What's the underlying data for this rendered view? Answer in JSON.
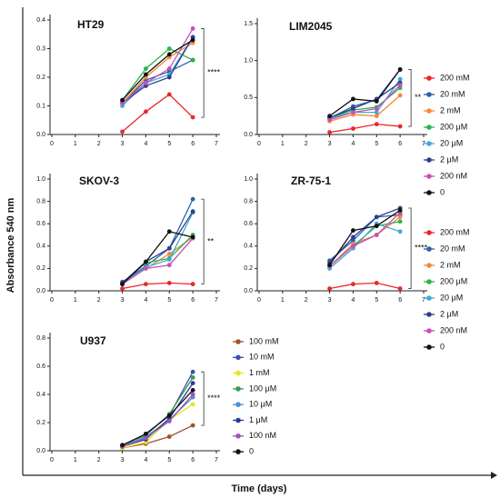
{
  "ylabel": "Absorbance 540 nm",
  "xlabel": "Time (days)",
  "chart_data": [
    {
      "type": "line",
      "title": "HT29",
      "x": [
        3,
        4,
        5,
        6
      ],
      "xlim": [
        0,
        7
      ],
      "xticks": [
        0,
        1,
        2,
        3,
        4,
        5,
        6,
        7
      ],
      "ylim": [
        0,
        0.4
      ],
      "yticks": [
        {
          "value": 0,
          "label": "0.0"
        },
        0.1,
        0.2,
        0.3,
        0.4
      ],
      "annotation": "****",
      "series": [
        {
          "color": "#e8282b",
          "values": [
            0.01,
            0.08,
            0.14,
            0.06
          ]
        },
        {
          "color": "#2e5fa8",
          "values": [
            0.11,
            0.19,
            0.22,
            0.26
          ]
        },
        {
          "color": "#f5883a",
          "values": [
            0.11,
            0.2,
            0.27,
            0.32
          ]
        },
        {
          "color": "#2bb34a",
          "values": [
            0.12,
            0.23,
            0.3,
            0.26
          ]
        },
        {
          "color": "#3fa9d9",
          "values": [
            0.1,
            0.18,
            0.21,
            0.34
          ]
        },
        {
          "color": "#2a3f8f",
          "values": [
            0.11,
            0.17,
            0.2,
            0.34
          ]
        },
        {
          "color": "#c94fb5",
          "values": [
            0.11,
            0.18,
            0.23,
            0.37
          ]
        },
        {
          "color": "#111111",
          "values": [
            0.12,
            0.21,
            0.28,
            0.33
          ]
        }
      ]
    },
    {
      "type": "line",
      "title": "LIM2045",
      "x": [
        3,
        4,
        5,
        6
      ],
      "xlim": [
        0,
        7
      ],
      "xticks": [
        0,
        1,
        2,
        3,
        4,
        5,
        6,
        7
      ],
      "ylim": [
        0,
        1.5
      ],
      "yticks": [
        {
          "value": 0,
          "label": "0.0"
        },
        0.5,
        {
          "value": 1,
          "label": "1.0"
        },
        1.5
      ],
      "annotation": "**",
      "legend": "right",
      "series": [
        {
          "name": "200 mM",
          "color": "#e8282b",
          "values": [
            0.03,
            0.08,
            0.14,
            0.11
          ]
        },
        {
          "name": "20 mM",
          "color": "#2e5fa8",
          "values": [
            0.22,
            0.38,
            0.47,
            0.88
          ]
        },
        {
          "name": "2 mM",
          "color": "#f5883a",
          "values": [
            0.18,
            0.27,
            0.25,
            0.53
          ]
        },
        {
          "name": "200 μM",
          "color": "#2bb34a",
          "values": [
            0.22,
            0.33,
            0.37,
            0.63
          ]
        },
        {
          "name": "20 μM",
          "color": "#3fa9d9",
          "values": [
            0.22,
            0.3,
            0.3,
            0.75
          ]
        },
        {
          "name": "2 μM",
          "color": "#2a3f8f",
          "values": [
            0.23,
            0.35,
            0.48,
            0.7
          ]
        },
        {
          "name": "200 nM",
          "color": "#c94fb5",
          "values": [
            0.2,
            0.3,
            0.35,
            0.67
          ]
        },
        {
          "name": "0",
          "color": "#111111",
          "values": [
            0.25,
            0.48,
            0.45,
            0.88
          ]
        }
      ]
    },
    {
      "type": "line",
      "title": "SKOV-3",
      "x": [
        3,
        4,
        5,
        6
      ],
      "xlim": [
        0,
        7
      ],
      "xticks": [
        0,
        1,
        2,
        3,
        4,
        5,
        6,
        7
      ],
      "ylim": [
        0,
        1
      ],
      "yticks": [
        {
          "value": 0,
          "label": "0.0"
        },
        0.2,
        0.4,
        0.6,
        0.8,
        {
          "value": 1,
          "label": "1.0"
        }
      ],
      "annotation": "**",
      "series": [
        {
          "color": "#e8282b",
          "values": [
            0.02,
            0.06,
            0.07,
            0.06
          ]
        },
        {
          "color": "#2e5fa8",
          "values": [
            0.08,
            0.22,
            0.38,
            0.82
          ]
        },
        {
          "color": "#f5883a",
          "values": [
            0.06,
            0.2,
            0.33,
            0.48
          ]
        },
        {
          "color": "#2bb34a",
          "values": [
            0.07,
            0.25,
            0.29,
            0.5
          ]
        },
        {
          "color": "#3fa9d9",
          "values": [
            0.07,
            0.21,
            0.28,
            0.7
          ]
        },
        {
          "color": "#2a3f8f",
          "values": [
            0.07,
            0.26,
            0.38,
            0.71
          ]
        },
        {
          "color": "#c94fb5",
          "values": [
            0.06,
            0.2,
            0.23,
            0.47
          ]
        },
        {
          "color": "#111111",
          "values": [
            0.06,
            0.26,
            0.53,
            0.48
          ]
        }
      ]
    },
    {
      "type": "line",
      "title": "ZR-75-1",
      "x": [
        3,
        4,
        5,
        6
      ],
      "xlim": [
        0,
        7
      ],
      "xticks": [
        0,
        1,
        2,
        3,
        4,
        5,
        6,
        7
      ],
      "ylim": [
        0,
        1
      ],
      "yticks": [
        {
          "value": 0,
          "label": "0.0"
        },
        0.2,
        0.4,
        0.6,
        0.8,
        {
          "value": 1,
          "label": "1.0"
        }
      ],
      "annotation": "****",
      "legend": "right",
      "series": [
        {
          "name": "200 mM",
          "color": "#e8282b",
          "values": [
            0.02,
            0.06,
            0.07,
            0.02
          ]
        },
        {
          "name": "20 mM",
          "color": "#2e5fa8",
          "values": [
            0.27,
            0.45,
            0.66,
            0.68
          ]
        },
        {
          "name": "2 mM",
          "color": "#f5883a",
          "values": [
            0.22,
            0.42,
            0.5,
            0.66
          ]
        },
        {
          "name": "200 μM",
          "color": "#2bb34a",
          "values": [
            0.22,
            0.4,
            0.58,
            0.62
          ]
        },
        {
          "name": "20 μM",
          "color": "#3fa9d9",
          "values": [
            0.2,
            0.38,
            0.6,
            0.53
          ]
        },
        {
          "name": "2 μM",
          "color": "#2a3f8f",
          "values": [
            0.25,
            0.48,
            0.66,
            0.74
          ]
        },
        {
          "name": "200 nM",
          "color": "#c94fb5",
          "values": [
            0.22,
            0.4,
            0.5,
            0.7
          ]
        },
        {
          "name": "0",
          "color": "#111111",
          "values": [
            0.23,
            0.54,
            0.58,
            0.72
          ]
        }
      ]
    },
    {
      "type": "line",
      "title": "U937",
      "x": [
        3,
        4,
        5,
        6
      ],
      "xlim": [
        0,
        7
      ],
      "xticks": [
        0,
        1,
        2,
        3,
        4,
        5,
        6,
        7
      ],
      "ylim": [
        0,
        0.8
      ],
      "yticks": [
        {
          "value": 0,
          "label": "0.0"
        },
        0.2,
        0.4,
        0.6,
        0.8
      ],
      "annotation": "****",
      "legend": "right",
      "series": [
        {
          "name": "100 mM",
          "color": "#a0522d",
          "values": [
            0.02,
            0.05,
            0.1,
            0.18
          ]
        },
        {
          "name": "10 mM",
          "color": "#3a50b5",
          "values": [
            0.03,
            0.12,
            0.25,
            0.56
          ]
        },
        {
          "name": "1 mM",
          "color": "#e6e619",
          "values": [
            0.02,
            0.06,
            0.22,
            0.33
          ]
        },
        {
          "name": "100 μM",
          "color": "#3a9a4a",
          "values": [
            0.04,
            0.11,
            0.26,
            0.52
          ]
        },
        {
          "name": "10 μM",
          "color": "#4a90d9",
          "values": [
            0.03,
            0.1,
            0.22,
            0.38
          ]
        },
        {
          "name": "1 μM",
          "color": "#2a3a9a",
          "values": [
            0.03,
            0.08,
            0.23,
            0.48
          ]
        },
        {
          "name": "100 nM",
          "color": "#a052b5",
          "values": [
            0.03,
            0.09,
            0.21,
            0.4
          ]
        },
        {
          "name": "0",
          "color": "#111111",
          "values": [
            0.04,
            0.12,
            0.25,
            0.43
          ]
        }
      ]
    }
  ]
}
